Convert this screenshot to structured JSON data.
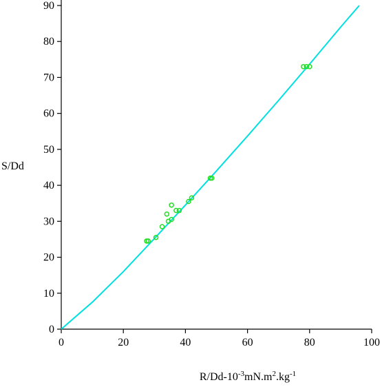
{
  "chart_data": {
    "type": "scatter",
    "y_label": "S/Dd",
    "x_label_parts": [
      {
        "text": "R/Dd-10"
      },
      {
        "text": "-3",
        "sup": true
      },
      {
        "text": "mN.m"
      },
      {
        "text": "2",
        "sup": true
      },
      {
        "text": ".kg"
      },
      {
        "text": "-1",
        "sup": true
      }
    ],
    "xlim": [
      0,
      100
    ],
    "ylim": [
      0,
      90
    ],
    "xticks": [
      0,
      20,
      40,
      60,
      80,
      100
    ],
    "yticks": [
      0,
      10,
      20,
      30,
      40,
      50,
      60,
      70,
      80,
      90
    ],
    "series": [
      {
        "kind": "line",
        "color": "#00e0e0",
        "x": [
          0,
          10,
          20,
          30,
          40,
          50,
          60,
          70,
          80,
          90,
          96
        ],
        "values": [
          0,
          7.5,
          16.0,
          25.2,
          34.5,
          44.0,
          53.7,
          63.6,
          73.7,
          84.0,
          90
        ]
      },
      {
        "kind": "points",
        "color": "#22dd22",
        "x": [
          27.5,
          28,
          30.5,
          32.5,
          34,
          34.5,
          35.5,
          35.5,
          37,
          38,
          41,
          42,
          48,
          48.5,
          78,
          79,
          80
        ],
        "values": [
          24.5,
          24.5,
          25.5,
          28.5,
          32,
          30,
          34.5,
          30.5,
          33,
          33,
          35.5,
          36.5,
          42,
          42,
          73,
          73,
          73
        ]
      }
    ]
  }
}
